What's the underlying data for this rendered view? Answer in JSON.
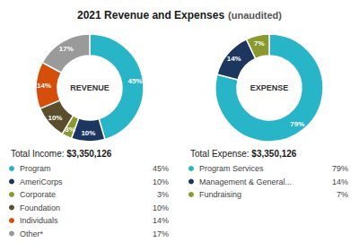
{
  "chart_data": [
    {
      "type": "pie",
      "title": "2021 Revenue and Expenses",
      "subtitle": "(unaudited)",
      "categories": [
        "Program",
        "AmeriCorps",
        "Corporate",
        "Foundation",
        "Individuals",
        "Other*"
      ],
      "values": [
        45,
        10,
        3,
        10,
        14,
        17
      ],
      "value_labels": [
        "45%",
        "10%",
        "3%",
        "10%",
        "14%",
        "17%"
      ],
      "colors": [
        "#29b5c8",
        "#1c3660",
        "#8a9a2e",
        "#5a4e2d",
        "#d4500a",
        "#9a9a9a"
      ],
      "data_labels": true,
      "legend": "bottom",
      "annotations": [
        "REVENUE",
        "Total Income: ",
        "$3,350,126"
      ]
    },
    {
      "type": "pie",
      "categories": [
        "Program Services",
        "Management & General...",
        "Fundraising"
      ],
      "values": [
        79,
        14,
        7
      ],
      "value_labels": [
        "79%",
        "14%",
        "7%"
      ],
      "colors": [
        "#29b5c8",
        "#1c3660",
        "#8a9a2e"
      ],
      "data_labels": true,
      "legend": "bottom",
      "annotations": [
        "EXPENSE",
        "Total Expense: ",
        "$3,350,126"
      ]
    }
  ]
}
